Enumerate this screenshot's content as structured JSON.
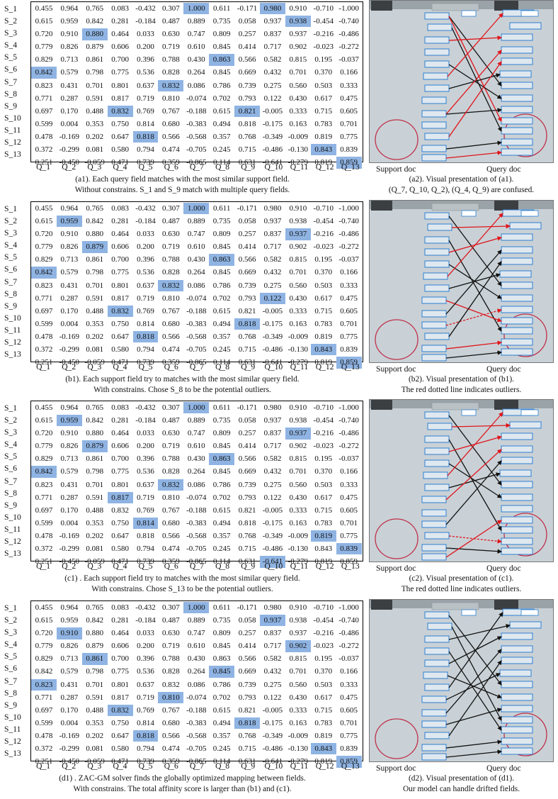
{
  "row_labels": [
    "S_1",
    "S_2",
    "S_3",
    "S_4",
    "S_5",
    "S_6",
    "S_7",
    "S_8",
    "S_9",
    "S_10",
    "S_11",
    "S_12",
    "S_13"
  ],
  "col_labels": [
    "Q_1",
    "Q_2",
    "Q_3",
    "Q_4",
    "Q_5",
    "Q_6",
    "Q_7",
    "Q_8",
    "Q_9",
    "Q_10",
    "Q_11",
    "Q_12",
    "Q_13"
  ],
  "matrix": [
    [
      "0.455",
      "0.964",
      "0.765",
      "0.083",
      "-0.432",
      "0.307",
      "1.000",
      "0.611",
      "-0.171",
      "0.980",
      "0.910",
      "-0.710",
      "-1.000"
    ],
    [
      "0.615",
      "0.959",
      "0.842",
      "0.281",
      "-0.184",
      "0.487",
      "0.889",
      "0.735",
      "0.058",
      "0.937",
      "0.938",
      "-0.454",
      "-0.740"
    ],
    [
      "0.720",
      "0.910",
      "0.880",
      "0.464",
      "0.033",
      "0.630",
      "0.747",
      "0.809",
      "0.257",
      "0.837",
      "0.937",
      "-0.216",
      "-0.486"
    ],
    [
      "0.779",
      "0.826",
      "0.879",
      "0.606",
      "0.200",
      "0.719",
      "0.610",
      "0.845",
      "0.414",
      "0.717",
      "0.902",
      "-0.023",
      "-0.272"
    ],
    [
      "0.829",
      "0.713",
      "0.861",
      "0.700",
      "0.396",
      "0.788",
      "0.430",
      "0.863",
      "0.566",
      "0.582",
      "0.815",
      "0.195",
      "-0.037"
    ],
    [
      "0.842",
      "0.579",
      "0.798",
      "0.775",
      "0.536",
      "0.828",
      "0.264",
      "0.845",
      "0.669",
      "0.432",
      "0.701",
      "0.370",
      "0.166"
    ],
    [
      "0.823",
      "0.431",
      "0.701",
      "0.801",
      "0.637",
      "0.832",
      "0.086",
      "0.786",
      "0.739",
      "0.275",
      "0.560",
      "0.503",
      "0.333"
    ],
    [
      "0.771",
      "0.287",
      "0.591",
      "0.817",
      "0.719",
      "0.810",
      "-0.074",
      "0.702",
      "0.793",
      "0.122",
      "0.430",
      "0.617",
      "0.475"
    ],
    [
      "0.697",
      "0.170",
      "0.488",
      "0.832",
      "0.769",
      "0.767",
      "-0.188",
      "0.615",
      "0.821",
      "-0.005",
      "0.333",
      "0.715",
      "0.605"
    ],
    [
      "0.599",
      "0.004",
      "0.353",
      "0.750",
      "0.814",
      "0.680",
      "-0.383",
      "0.494",
      "0.818",
      "-0.175",
      "0.163",
      "0.783",
      "0.701"
    ],
    [
      "0.478",
      "-0.169",
      "0.202",
      "0.647",
      "0.818",
      "0.566",
      "-0.568",
      "0.357",
      "0.768",
      "-0.349",
      "-0.009",
      "0.819",
      "0.775"
    ],
    [
      "0.372",
      "-0.299",
      "0.081",
      "0.580",
      "0.794",
      "0.474",
      "-0.705",
      "0.245",
      "0.715",
      "-0.486",
      "-0.130",
      "0.843",
      "0.839"
    ],
    [
      "0.251",
      "-0.450",
      "-0.059",
      "0.471",
      "0.739",
      "0.359",
      "-0.865",
      "0.114",
      "0.631",
      "-0.641",
      "-0.279",
      "0.819",
      "0.859"
    ]
  ],
  "doc_labels": {
    "support": "Support doc",
    "query": "Query doc"
  },
  "colors": {
    "highlight": "#8fb4e3",
    "match_arrow": "#111111",
    "wrong_arrow": "#e0151b",
    "field_box": "#2f7fd0",
    "stamp": "#c0304a"
  },
  "panels": [
    {
      "id": "a",
      "highlights": [
        [
          0,
          6
        ],
        [
          0,
          9
        ],
        [
          1,
          10
        ],
        [
          2,
          2
        ],
        [
          4,
          7
        ],
        [
          5,
          0
        ],
        [
          6,
          5
        ],
        [
          8,
          3
        ],
        [
          8,
          8
        ],
        [
          10,
          4
        ],
        [
          11,
          11
        ],
        [
          12,
          12
        ]
      ],
      "caption": [
        "(a1). Each query field matches with the most similar support field.",
        "Without constrains. S_1 and S_9 match with multiple query fields."
      ],
      "image_caption": [
        "(a2). Visual presentation of (a1).",
        "(Q_7, Q_10, Q_2), (Q_4, Q_9) are confused."
      ]
    },
    {
      "id": "b",
      "highlights": [
        [
          0,
          6
        ],
        [
          1,
          1
        ],
        [
          2,
          10
        ],
        [
          3,
          2
        ],
        [
          4,
          7
        ],
        [
          5,
          0
        ],
        [
          6,
          5
        ],
        [
          7,
          9
        ],
        [
          8,
          3
        ],
        [
          9,
          8
        ],
        [
          10,
          4
        ],
        [
          11,
          11
        ],
        [
          12,
          12
        ]
      ],
      "caption": [
        "(b1). Each support field try to matches with the most similar query field.",
        "With constrains. Chose S_8 to be the potential outliers."
      ],
      "image_caption": [
        "(b2). Visual presentation of (b1).",
        "The red dotted line indicates outliers."
      ]
    },
    {
      "id": "c",
      "highlights": [
        [
          0,
          6
        ],
        [
          1,
          1
        ],
        [
          2,
          10
        ],
        [
          3,
          2
        ],
        [
          4,
          7
        ],
        [
          5,
          0
        ],
        [
          6,
          5
        ],
        [
          7,
          3
        ],
        [
          9,
          4
        ],
        [
          10,
          11
        ],
        [
          11,
          12
        ],
        [
          12,
          9
        ]
      ],
      "caption": [
        "(c1) . Each support field try to matches with the most similar query field.",
        "With constrains. Chose S_13 to be the potential outliers."
      ],
      "image_caption": [
        "(c2). Visual presentation of (c1).",
        "The red dotted line indicates outliers."
      ]
    },
    {
      "id": "d",
      "highlights": [
        [
          0,
          6
        ],
        [
          1,
          9
        ],
        [
          2,
          1
        ],
        [
          3,
          10
        ],
        [
          4,
          2
        ],
        [
          5,
          7
        ],
        [
          6,
          0
        ],
        [
          7,
          5
        ],
        [
          8,
          3
        ],
        [
          9,
          8
        ],
        [
          10,
          4
        ],
        [
          11,
          11
        ],
        [
          12,
          12
        ]
      ],
      "caption": [
        "(d1) . ZAC-GM solver finds the globally optimized mapping between fields.",
        "With constrains. The total affinity score is larger than (b1) and (c1)."
      ],
      "image_caption": [
        "(d2). Visual presentation of (d1).",
        "Our model can handle drifted fields."
      ]
    }
  ]
}
